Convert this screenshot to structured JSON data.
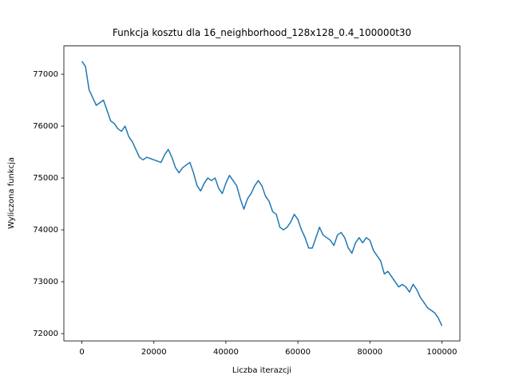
{
  "chart_data": {
    "type": "line",
    "title": "Funkcja kosztu dla 16_neighborhood_128x128_0.4_100000t30",
    "x_label": "Liczba iterazcji",
    "y_label": "Wyliczona funkcja",
    "x": [
      0,
      1000,
      2000,
      3000,
      4000,
      5000,
      6000,
      7000,
      8000,
      9000,
      10000,
      11000,
      12000,
      13000,
      14000,
      15000,
      16000,
      17000,
      18000,
      20000,
      22000,
      23000,
      24000,
      25000,
      26000,
      27000,
      28000,
      30000,
      31000,
      32000,
      33000,
      34000,
      35000,
      36000,
      37000,
      38000,
      39000,
      40000,
      41000,
      42000,
      43000,
      44000,
      45000,
      46000,
      47000,
      48000,
      49000,
      50000,
      51000,
      52000,
      53000,
      54000,
      55000,
      56000,
      57000,
      58000,
      59000,
      60000,
      61000,
      62000,
      63000,
      64000,
      65000,
      66000,
      67000,
      68000,
      69000,
      70000,
      71000,
      72000,
      73000,
      74000,
      75000,
      76000,
      77000,
      78000,
      79000,
      80000,
      81000,
      82000,
      83000,
      84000,
      85000,
      86000,
      87000,
      88000,
      89000,
      90000,
      91000,
      92000,
      93000,
      94000,
      95000,
      96000,
      97000,
      98000,
      99000,
      100000
    ],
    "series": [
      {
        "name": "Wyliczona funkcja",
        "color": "#1f77b4",
        "values": [
          77250,
          77150,
          76700,
          76550,
          76400,
          76450,
          76500,
          76300,
          76100,
          76050,
          75950,
          75900,
          76000,
          75800,
          75700,
          75550,
          75400,
          75350,
          75400,
          75350,
          75300,
          75450,
          75550,
          75400,
          75200,
          75100,
          75200,
          75300,
          75100,
          74850,
          74750,
          74900,
          75000,
          74950,
          75000,
          74800,
          74700,
          74900,
          75050,
          74950,
          74850,
          74600,
          74400,
          74600,
          74700,
          74850,
          74950,
          74850,
          74650,
          74550,
          74350,
          74300,
          74050,
          74000,
          74050,
          74150,
          74300,
          74200,
          74000,
          73850,
          73650,
          73650,
          73850,
          74050,
          73900,
          73850,
          73800,
          73700,
          73900,
          73950,
          73850,
          73650,
          73550,
          73750,
          73850,
          73750,
          73850,
          73800,
          73600,
          73500,
          73400,
          73150,
          73200,
          73100,
          73000,
          72900,
          72950,
          72900,
          72800,
          72950,
          72850,
          72700,
          72600,
          72500,
          72450,
          72400,
          72300,
          72150
        ]
      }
    ],
    "xlim": [
      -5000,
      105000
    ],
    "ylim": [
      71860,
      77545
    ],
    "xticks": [
      0,
      20000,
      40000,
      60000,
      80000,
      100000
    ],
    "yticks": [
      72000,
      73000,
      74000,
      75000,
      76000,
      77000
    ]
  }
}
